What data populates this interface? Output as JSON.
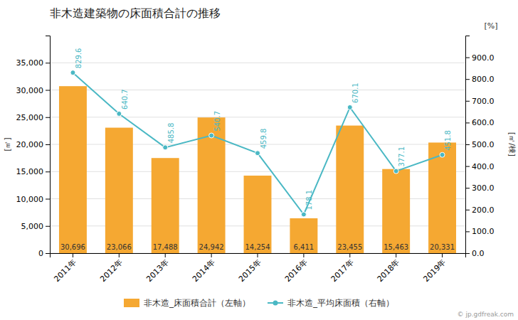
{
  "chart_data": {
    "type": "bar",
    "title": "非木造建築物の床面積合計の推移",
    "categories": [
      "2011年",
      "2012年",
      "2013年",
      "2014年",
      "2015年",
      "2016年",
      "2017年",
      "2018年",
      "2019年"
    ],
    "ylabel": "[㎡]",
    "y2label": "[㎡/棟]",
    "annotations": [
      "[%]",
      "© jp.gdfreak.com"
    ],
    "series": [
      {
        "name": "非木造_床面積合計（左軸）",
        "type": "bar",
        "color": "#f5a832",
        "values": [
          30696,
          23066,
          17488,
          24942,
          14254,
          6411,
          23455,
          15463,
          20331
        ],
        "value_labels": [
          "30,696",
          "23,066",
          "17,488",
          "24,942",
          "14,254",
          "6,411",
          "23,455",
          "15,463",
          "20,331"
        ],
        "data_labels": true
      },
      {
        "name": "非木造_平均床面積（右軸）",
        "type": "line",
        "color": "#4ab8c4",
        "marker": "circle",
        "axis": "y2",
        "values": [
          829.6,
          640.7,
          485.8,
          540.7,
          459.8,
          178.1,
          670.1,
          377.1,
          451.8
        ],
        "data_labels": true
      }
    ],
    "ylim": [
      0,
      40000
    ],
    "yticks": [
      0,
      {
        "value": 5000,
        "label": "5,000"
      },
      {
        "value": 10000,
        "label": "10,000"
      },
      {
        "value": 15000,
        "label": "15,000"
      },
      {
        "value": 20000,
        "label": "20,000"
      },
      {
        "value": 25000,
        "label": "25,000"
      },
      {
        "value": 30000,
        "label": "30,000"
      },
      {
        "value": 35000,
        "label": "35,000"
      }
    ],
    "y2lim": [
      0,
      1000
    ],
    "y2ticks": [
      {
        "value": 0,
        "label": "0.0"
      },
      {
        "value": 100,
        "label": "100.0"
      },
      {
        "value": 200,
        "label": "200.0"
      },
      {
        "value": 300,
        "label": "300.0"
      },
      {
        "value": 400,
        "label": "400.0"
      },
      {
        "value": 500,
        "label": "500.0"
      },
      {
        "value": 600,
        "label": "600.0"
      },
      {
        "value": 700,
        "label": "700.0"
      },
      {
        "value": 800,
        "label": "800.0"
      },
      {
        "value": 900,
        "label": "900.0"
      }
    ],
    "grid": true,
    "legend": "bottom"
  }
}
